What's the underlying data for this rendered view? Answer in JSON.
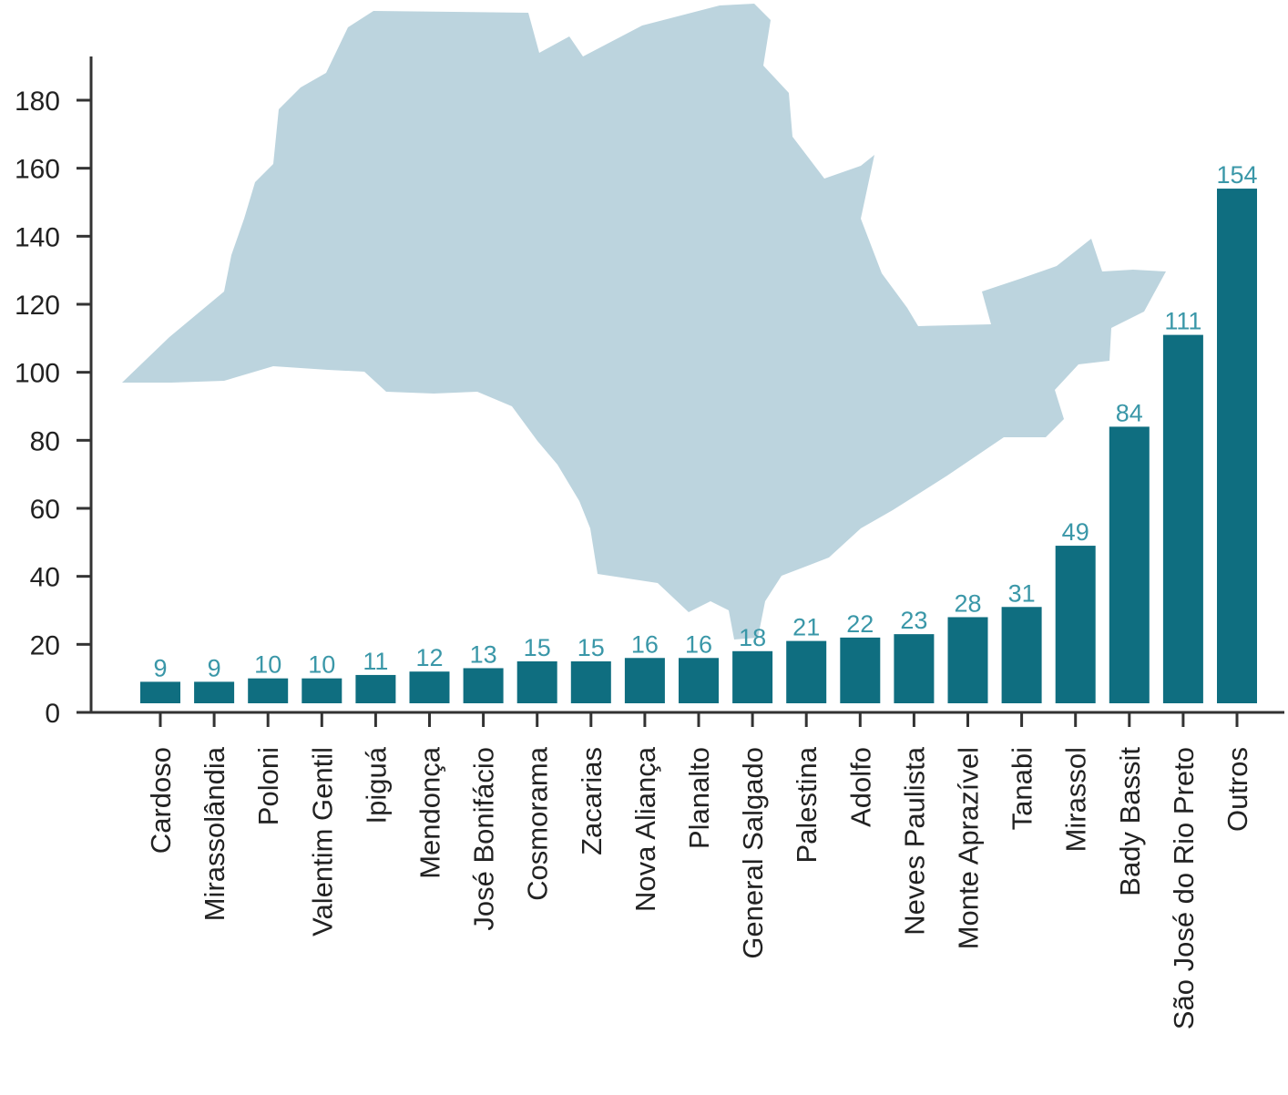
{
  "chart_data": {
    "type": "bar",
    "title": "",
    "xlabel": "",
    "ylabel": "",
    "ylim": [
      0,
      190
    ],
    "yticks": [
      0,
      20,
      40,
      60,
      80,
      100,
      120,
      140,
      160,
      180
    ],
    "grid": false,
    "legend": "none",
    "background_shape": "São Paulo state map silhouette",
    "categories": [
      "Cardoso",
      "Mirassolândia",
      "Poloni",
      "Valentim Gentil",
      "Ipiguá",
      "Mendonça",
      "José Bonifácio",
      "Cosmorama",
      "Zacarias",
      "Nova Aliança",
      "Planalto",
      "General Salgado",
      "Palestina",
      "Adolfo",
      "Neves Paulista",
      "Monte Aprazível",
      "Tanabi",
      "Mirassol",
      "Bady Bassit",
      "São José do Rio Preto",
      "Outros"
    ],
    "values": [
      9,
      9,
      10,
      10,
      11,
      12,
      13,
      15,
      15,
      16,
      16,
      18,
      21,
      22,
      23,
      28,
      31,
      49,
      84,
      111,
      154
    ],
    "colors": {
      "bar": "#0f6e80",
      "data_label": "#3a97a8",
      "map": "#bcd4de",
      "axis": "#333333"
    }
  }
}
